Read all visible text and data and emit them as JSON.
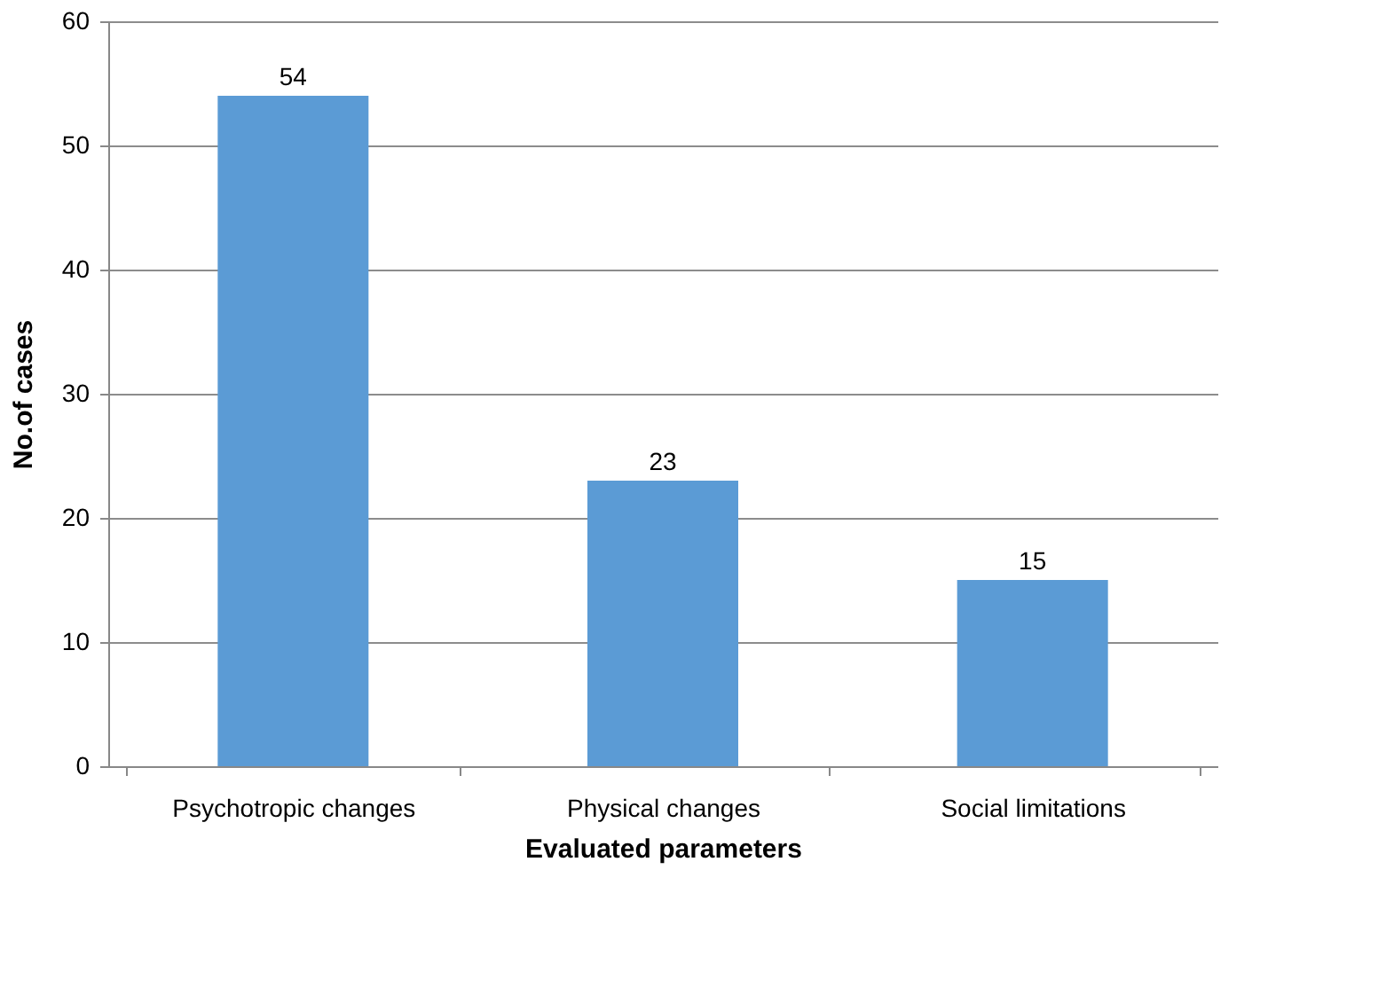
{
  "chart_data": {
    "type": "bar",
    "xlabel": "Evaluated parameters",
    "ylabel": "No.of cases",
    "categories": [
      "Psychotropic changes",
      "Physical changes",
      "Social limitations"
    ],
    "values": [
      54,
      23,
      15
    ],
    "color": "#5b9bd5",
    "ylim": [
      0,
      60
    ],
    "yticks": [
      0,
      10,
      20,
      30,
      40,
      50,
      60
    ],
    "grid": "y",
    "data_labels": true
  }
}
